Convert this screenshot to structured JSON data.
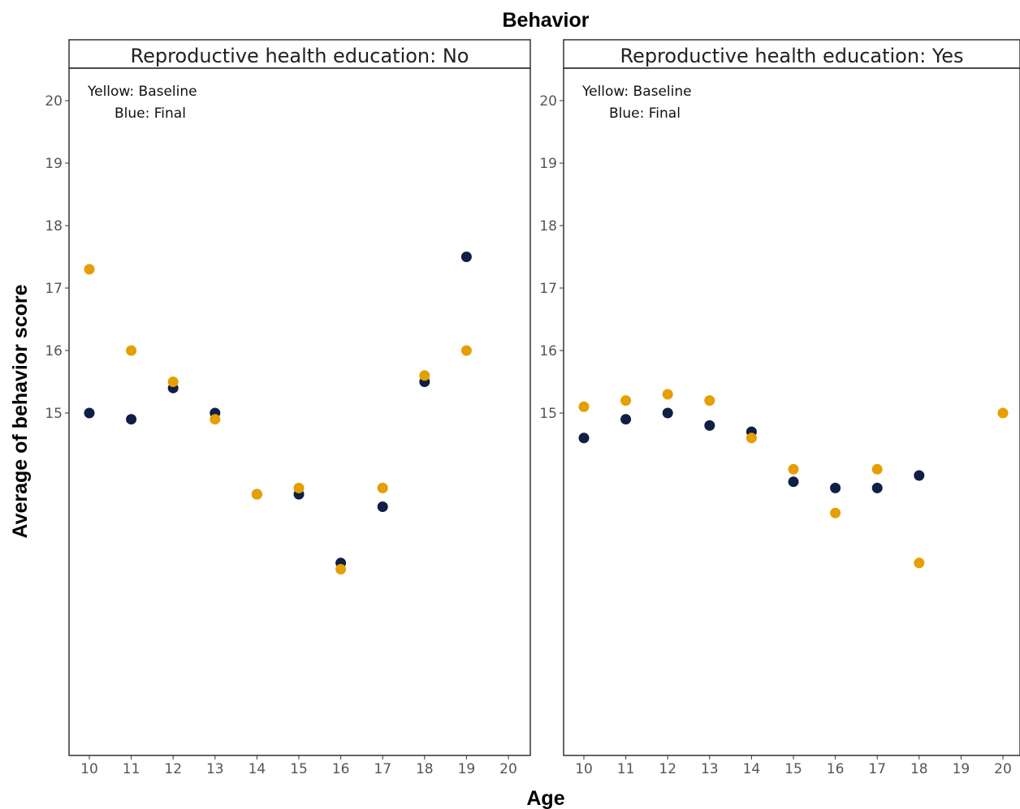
{
  "chart_data": {
    "type": "scatter",
    "title": "Behavior",
    "xlabel": "Age",
    "ylabel": "Average of behavior score",
    "xlim": [
      9.5,
      20.5
    ],
    "ylim": [
      9.5,
      20.5
    ],
    "x_ticks": [
      10,
      11,
      12,
      13,
      14,
      15,
      16,
      17,
      18,
      19,
      20
    ],
    "y_ticks": [
      15,
      16,
      17,
      18,
      19,
      20
    ],
    "grid": false,
    "colors": {
      "Baseline": "#E69F00",
      "Final": "#0F1F45"
    },
    "panels": [
      {
        "strip": "Reproductive health education: No",
        "note_lines": [
          "Yellow: Baseline",
          "Blue: Final"
        ],
        "series": [
          {
            "points": [
              {
                "x": 10,
                "y": 17.3
              },
              {
                "x": 11,
                "y": 16.0
              },
              {
                "x": 12,
                "y": 15.5
              },
              {
                "x": 13,
                "y": 14.9
              },
              {
                "x": 14,
                "y": 13.7
              },
              {
                "x": 15,
                "y": 13.8
              },
              {
                "x": 16,
                "y": 12.5
              },
              {
                "x": 17,
                "y": 13.8
              },
              {
                "x": 18,
                "y": 15.6
              },
              {
                "x": 19,
                "y": 16.0
              }
            ]
          },
          {
            "points": [
              {
                "x": 10,
                "y": 15.0
              },
              {
                "x": 11,
                "y": 14.9
              },
              {
                "x": 12,
                "y": 15.4
              },
              {
                "x": 13,
                "y": 15.0
              },
              {
                "x": 14,
                "y": 13.7
              },
              {
                "x": 15,
                "y": 13.7
              },
              {
                "x": 16,
                "y": 12.6
              },
              {
                "x": 17,
                "y": 13.5
              },
              {
                "x": 18,
                "y": 15.5
              },
              {
                "x": 19,
                "y": 17.5
              }
            ]
          }
        ]
      },
      {
        "strip": "Reproductive health education: Yes",
        "note_lines": [
          "Yellow: Baseline",
          "Blue: Final"
        ],
        "series": [
          {
            "points": [
              {
                "x": 10,
                "y": 15.1
              },
              {
                "x": 11,
                "y": 15.2
              },
              {
                "x": 12,
                "y": 15.3
              },
              {
                "x": 13,
                "y": 15.2
              },
              {
                "x": 14,
                "y": 14.6
              },
              {
                "x": 15,
                "y": 14.1
              },
              {
                "x": 16,
                "y": 13.4
              },
              {
                "x": 17,
                "y": 14.1
              },
              {
                "x": 18,
                "y": 12.6
              },
              {
                "x": 20,
                "y": 15.0
              }
            ]
          },
          {
            "points": [
              {
                "x": 10,
                "y": 14.6
              },
              {
                "x": 11,
                "y": 14.9
              },
              {
                "x": 12,
                "y": 15.0
              },
              {
                "x": 13,
                "y": 14.8
              },
              {
                "x": 14,
                "y": 14.7
              },
              {
                "x": 15,
                "y": 13.9
              },
              {
                "x": 16,
                "y": 13.8
              },
              {
                "x": 17,
                "y": 13.8
              },
              {
                "x": 18,
                "y": 14.0
              }
            ]
          }
        ]
      }
    ]
  }
}
